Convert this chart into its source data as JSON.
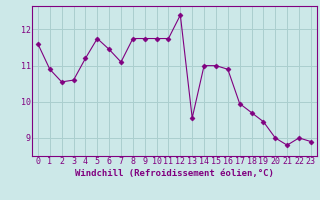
{
  "x": [
    0,
    1,
    2,
    3,
    4,
    5,
    6,
    7,
    8,
    9,
    10,
    11,
    12,
    13,
    14,
    15,
    16,
    17,
    18,
    19,
    20,
    21,
    22,
    23
  ],
  "y": [
    11.6,
    10.9,
    10.55,
    10.6,
    11.2,
    11.75,
    11.45,
    11.1,
    11.75,
    11.75,
    11.75,
    11.75,
    12.4,
    9.55,
    11.0,
    11.0,
    10.9,
    9.95,
    9.7,
    9.45,
    9.0,
    8.8,
    9.0,
    8.9
  ],
  "line_color": "#800080",
  "marker": "D",
  "marker_size": 2.5,
  "bg_color": "#cce8e8",
  "grid_color": "#aacece",
  "xlabel": "Windchill (Refroidissement éolien,°C)",
  "ylim": [
    8.5,
    12.65
  ],
  "xlim": [
    -0.5,
    23.5
  ],
  "yticks": [
    9,
    10,
    11,
    12
  ],
  "xticks": [
    0,
    1,
    2,
    3,
    4,
    5,
    6,
    7,
    8,
    9,
    10,
    11,
    12,
    13,
    14,
    15,
    16,
    17,
    18,
    19,
    20,
    21,
    22,
    23
  ],
  "tick_color": "#800080",
  "label_color": "#800080",
  "spine_color": "#800080",
  "font_size_xlabel": 6.5,
  "font_size_ticks": 6.0
}
